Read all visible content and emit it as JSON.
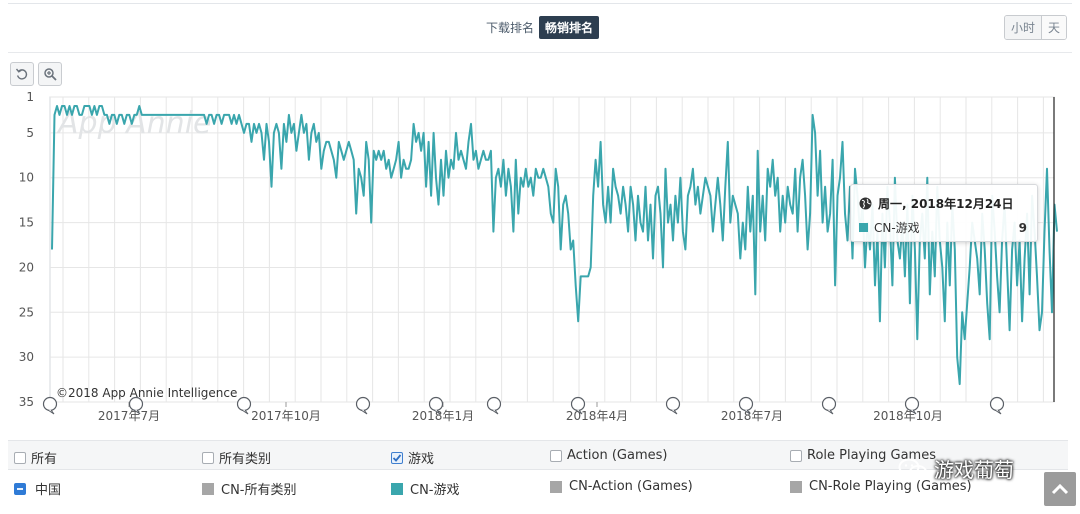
{
  "tabs": {
    "downloads": "下载排名",
    "grossing": "畅销排名"
  },
  "granularity": {
    "hour": "小时",
    "day": "天"
  },
  "toolbar": {
    "reset_icon": "reset-icon",
    "zoom_icon": "zoom-in-icon"
  },
  "watermark": {
    "brand": "App Annie",
    "copyright": "©2018 App Annie Intelligence"
  },
  "tooltip": {
    "date": "周一, 2018年12月24日",
    "series": "CN-游戏",
    "value": "9"
  },
  "legend_categories": [
    {
      "label": "所有",
      "checked": false
    },
    {
      "label": "所有类别",
      "checked": false
    },
    {
      "label": "游戏",
      "checked": true
    },
    {
      "label": "Action (Games)",
      "checked": false
    },
    {
      "label": "Role Playing Games",
      "checked": false
    }
  ],
  "legend_series": [
    {
      "label": "中国",
      "color": "#2f7bd6"
    },
    {
      "label": "CN-所有类别",
      "color": "#a6a6a6"
    },
    {
      "label": "CN-游戏",
      "color": "#3aa6ad"
    },
    {
      "label": "CN-Action (Games)",
      "color": "#a6a6a6"
    },
    {
      "label": "CN-Role Playing (Games)",
      "color": "#a6a6a6"
    }
  ],
  "wechat_watermark": "游戏葡萄",
  "colors": {
    "line": "#3aa6ad",
    "grid": "#e6e6e6",
    "axis_text": "#555555"
  },
  "chart_data": {
    "type": "line",
    "title": "",
    "xlabel": "",
    "ylabel": "",
    "y_inverted": true,
    "ylim": [
      1,
      35
    ],
    "yticks": [
      1,
      5,
      10,
      15,
      20,
      25,
      30,
      35
    ],
    "xticks": [
      "2017年7月",
      "2017年10月",
      "2018年1月",
      "2018年4月",
      "2018年7月",
      "2018年10月"
    ],
    "x_range": [
      "2017-05-20",
      "2018-12-28"
    ],
    "series": [
      {
        "name": "CN-游戏",
        "values": [
          18,
          3,
          2,
          3,
          2,
          2,
          3,
          2,
          3,
          2,
          2,
          3,
          3,
          2,
          2,
          2,
          3,
          2,
          3,
          2,
          2,
          3,
          3,
          4,
          3,
          3,
          4,
          3,
          3,
          4,
          3,
          3,
          4,
          3,
          3,
          2,
          3,
          3,
          3,
          3,
          3,
          3,
          3,
          3,
          3,
          3,
          3,
          3,
          3,
          3,
          3,
          3,
          3,
          3,
          3,
          3,
          3,
          3,
          3,
          3,
          3,
          3,
          4,
          3,
          3,
          4,
          3,
          3,
          4,
          3,
          3,
          3,
          4,
          3,
          4,
          3,
          4,
          5,
          4,
          4,
          6,
          4,
          5,
          4,
          5,
          8,
          4,
          6,
          11,
          5,
          4,
          5,
          9,
          4,
          6,
          3,
          5,
          4,
          7,
          5,
          3,
          5,
          4,
          8,
          5,
          4,
          6,
          5,
          9,
          7,
          6,
          6,
          7,
          8,
          10,
          6,
          7,
          8,
          7,
          6,
          7,
          8,
          14,
          9,
          10,
          12,
          6,
          8,
          15,
          7,
          8,
          7,
          8,
          7,
          9,
          8,
          10,
          9,
          8,
          6,
          10,
          8,
          9,
          9,
          8,
          4,
          6,
          5,
          7,
          5,
          11,
          6,
          12,
          5,
          10,
          13,
          8,
          12,
          7,
          10,
          8,
          9,
          5,
          8,
          7,
          8,
          9,
          6,
          4,
          8,
          7,
          9,
          8,
          7,
          8,
          8,
          7,
          16,
          10,
          9,
          11,
          8,
          12,
          9,
          11,
          16,
          8,
          14,
          10,
          11,
          9,
          11,
          10,
          12,
          9,
          10,
          10,
          9,
          10,
          11,
          14,
          15,
          9,
          11,
          18,
          13,
          12,
          14,
          18,
          17,
          22,
          26,
          21,
          21,
          21,
          21,
          20,
          12,
          8,
          11,
          6,
          13,
          15,
          11,
          15,
          9,
          11,
          12,
          14,
          11,
          13,
          16,
          11,
          13,
          17,
          12,
          15,
          16,
          11,
          17,
          13,
          19,
          12,
          11,
          14,
          20,
          9,
          15,
          13,
          17,
          12,
          15,
          10,
          16,
          18,
          12,
          11,
          9,
          13,
          11,
          14,
          12,
          10,
          11,
          12,
          16,
          13,
          10,
          13,
          17,
          11,
          6,
          15,
          12,
          13,
          14,
          19,
          15,
          18,
          11,
          16,
          12,
          23,
          7,
          16,
          12,
          17,
          9,
          11,
          8,
          12,
          10,
          16,
          12,
          15,
          11,
          13,
          14,
          9,
          16,
          10,
          8,
          12,
          18,
          14,
          3,
          5,
          12,
          7,
          15,
          11,
          16,
          14,
          8,
          22,
          12,
          10,
          6,
          14,
          17,
          11,
          19,
          9,
          12,
          16,
          13,
          20,
          15,
          18,
          13,
          22,
          16,
          26,
          14,
          20,
          11,
          15,
          22,
          10,
          17,
          19,
          15,
          21,
          13,
          24,
          12,
          18,
          28,
          17,
          14,
          19,
          10,
          23,
          16,
          21,
          11,
          17,
          20,
          26,
          15,
          22,
          13,
          18,
          30,
          33,
          25,
          28,
          24,
          20,
          15,
          17,
          19,
          23,
          14,
          18,
          24,
          28,
          12,
          16,
          21,
          25,
          17,
          13,
          20,
          27,
          18,
          15,
          22,
          17,
          26,
          19,
          14,
          23,
          12,
          16,
          21,
          27,
          25,
          16,
          9,
          18,
          25,
          13,
          16
        ]
      }
    ]
  }
}
